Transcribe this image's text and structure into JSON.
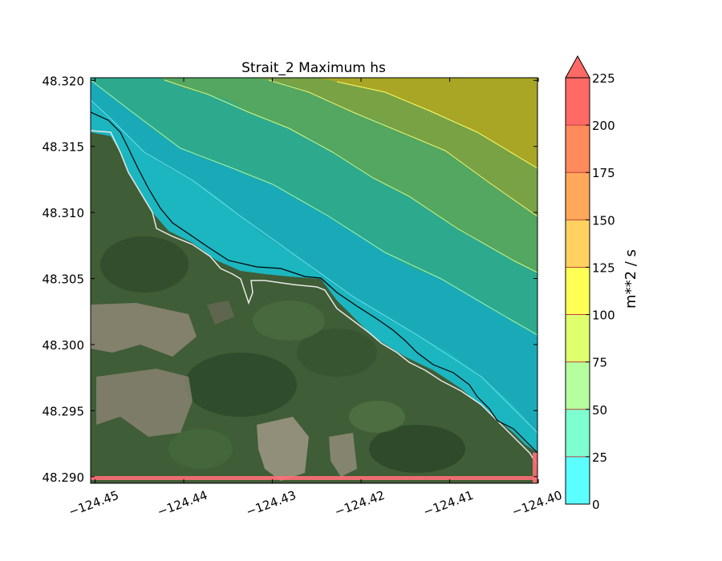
{
  "chart_data": {
    "type": "heatmap",
    "title": "Strait_2 Maximum hs",
    "xlabel": "",
    "ylabel": "",
    "xlim": [
      -124.4505,
      -124.4001
    ],
    "ylim": [
      48.2895,
      48.3202
    ],
    "x_ticks": [
      "−124.45",
      "−124.44",
      "−124.43",
      "−124.42",
      "−124.41",
      "−124.40"
    ],
    "x_tick_values": [
      -124.45,
      -124.44,
      -124.43,
      -124.42,
      -124.41,
      -124.4
    ],
    "y_ticks": [
      "48.320",
      "48.315",
      "48.310",
      "48.305",
      "48.300",
      "48.295",
      "48.290"
    ],
    "y_tick_values": [
      48.32,
      48.315,
      48.31,
      48.305,
      48.3,
      48.295,
      48.29
    ],
    "background": "satellite imagery of forested coastline with cleared patches",
    "colorbar": {
      "label": "m**2 / s",
      "levels": [
        0,
        25,
        50,
        75,
        100,
        125,
        150,
        175,
        200,
        225
      ],
      "tick_labels": [
        "0",
        "25",
        "50",
        "75",
        "100",
        "125",
        "150",
        "175",
        "200",
        "225"
      ],
      "colors": [
        "#5cffff",
        "#7effd0",
        "#b5ff9f",
        "#e0ff6e",
        "#ffff55",
        "#ffd25f",
        "#ffa85a",
        "#ff8a5c",
        "#ff6a66"
      ],
      "extend": "max"
    },
    "contour_bands": [
      {
        "range": [
          0,
          25
        ],
        "color": "#0fb4c4"
      },
      {
        "range": [
          25,
          50
        ],
        "color": "#1faab0"
      },
      {
        "range": [
          50,
          75
        ],
        "color": "#2fae8c"
      },
      {
        "range": [
          75,
          100
        ],
        "color": "#55a65e"
      },
      {
        "range": [
          100,
          125
        ],
        "color": "#7ba244"
      },
      {
        "range": [
          125,
          150
        ],
        "color": "#a8a624"
      }
    ],
    "outline_colors": {
      "coastline": "#000000",
      "shoreline": "#e8e8e8",
      "land_edge_strip": "#ff6f78"
    }
  }
}
